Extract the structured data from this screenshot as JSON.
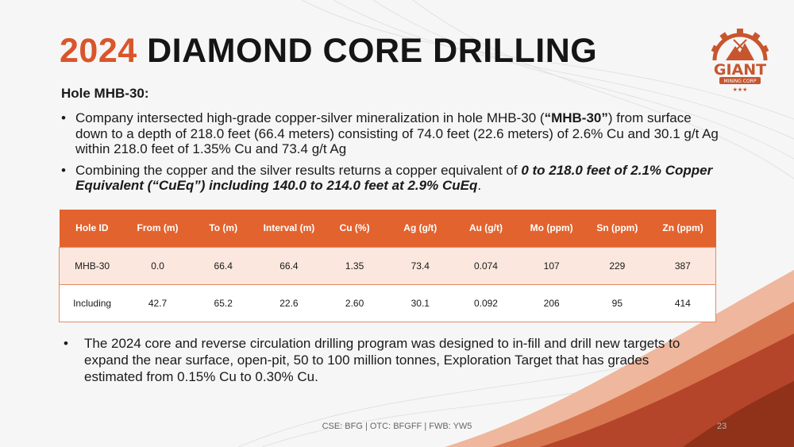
{
  "slide": {
    "title_year": "2024",
    "title_rest": " DIAMOND CORE DRILLING",
    "subtitle": "Hole MHB-30:",
    "bullet1": {
      "text_a": "Company intersected high-grade copper-silver mineralization in hole MHB-30 (",
      "bold": "“MHB-30”",
      "text_b": ") from surface down to a depth of 218.0 feet (66.4 meters) consisting of 74.0 feet (22.6 meters) of 2.6% Cu and 30.1 g/t Ag within 218.0 feet of 1.35% Cu and 73.4 g/t Ag"
    },
    "bullet2": {
      "text_a": "Combining the copper and the silver results returns a copper equivalent of ",
      "bold_italic": "0 to 218.0 feet of 2.1% Copper Equivalent (“CuEq”) including 140.0 to 214.0 feet at 2.9% CuEq",
      "text_b": "."
    },
    "bullet3": "The 2024 core and reverse circulation drilling program was designed to in-fill and drill new targets to expand the near surface, open-pit, 50 to 100 million tonnes, Exploration Target that has grades estimated from 0.15% Cu to 0.30% Cu.",
    "bullet_glyph": "•"
  },
  "table": {
    "headers": [
      "Hole ID",
      "From (m)",
      "To (m)",
      "Interval (m)",
      "Cu (%)",
      "Ag (g/t)",
      "Au (g/t)",
      "Mo (ppm)",
      "Sn (ppm)",
      "Zn (ppm)"
    ],
    "rows": [
      [
        "MHB-30",
        "0.0",
        "66.4",
        "66.4",
        "1.35",
        "73.4",
        "0.074",
        "107",
        "229",
        "387"
      ],
      [
        "Including",
        "42.7",
        "65.2",
        "22.6",
        "2.60",
        "30.1",
        "0.092",
        "206",
        "95",
        "414"
      ]
    ]
  },
  "footer": {
    "tickers": "CSE: BFG | OTC: BFGFF | FWB: YW5",
    "page_number": "23"
  },
  "logo": {
    "name": "GIANT",
    "tagline": "MINING CORP",
    "stars": "★★★",
    "color": "#c7562e"
  },
  "colors": {
    "accent": "#d9562a",
    "table_header": "#e2632e",
    "row_highlight": "#fbe7dd",
    "wave_dark": "#a33a1f",
    "wave_mid": "#c85a35",
    "wave_light": "#e9a184"
  }
}
